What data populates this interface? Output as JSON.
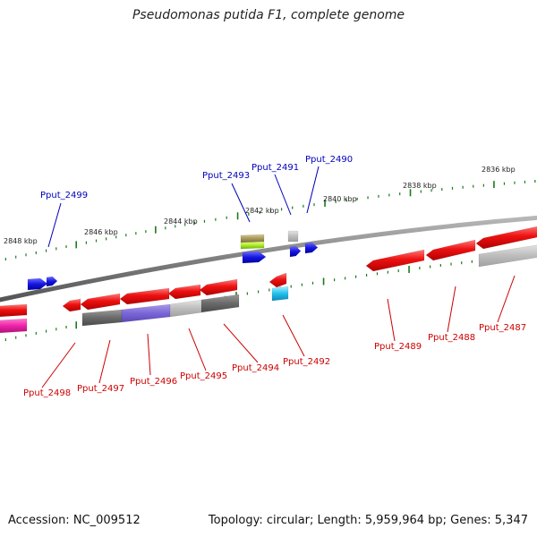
{
  "title": "Pseudomonas putida F1, complete genome",
  "footer": {
    "accession": "Accession: NC_009512",
    "summary": "Topology: circular; Length: 5,959,964 bp; Genes: 5,347"
  },
  "colors": {
    "backbone": "#7f7f7f",
    "top_label": "#0000bb",
    "bottom_label": "#cc0000",
    "tick": "#1a7a1a",
    "gene_red": "#ee1111",
    "gene_blue": "#1515e0"
  },
  "scale_labels": [
    {
      "text": "2848 kbp"
    },
    {
      "text": "2846 kbp"
    },
    {
      "text": "2844 kbp"
    },
    {
      "text": "2842 kbp"
    },
    {
      "text": "2840 kbp"
    },
    {
      "text": "2838 kbp"
    },
    {
      "text": "2836 kbp"
    }
  ],
  "top_labels": [
    {
      "text": "Pput_2499"
    },
    {
      "text": "Pput_2493"
    },
    {
      "text": "Pput_2491"
    },
    {
      "text": "Pput_2490"
    }
  ],
  "bottom_labels": [
    {
      "text": "Pput_2498"
    },
    {
      "text": "Pput_2497"
    },
    {
      "text": "Pput_2496"
    },
    {
      "text": "Pput_2495"
    },
    {
      "text": "Pput_2494"
    },
    {
      "text": "Pput_2492"
    },
    {
      "text": "Pput_2489"
    },
    {
      "text": "Pput_2488"
    },
    {
      "text": "Pput_2487"
    }
  ]
}
